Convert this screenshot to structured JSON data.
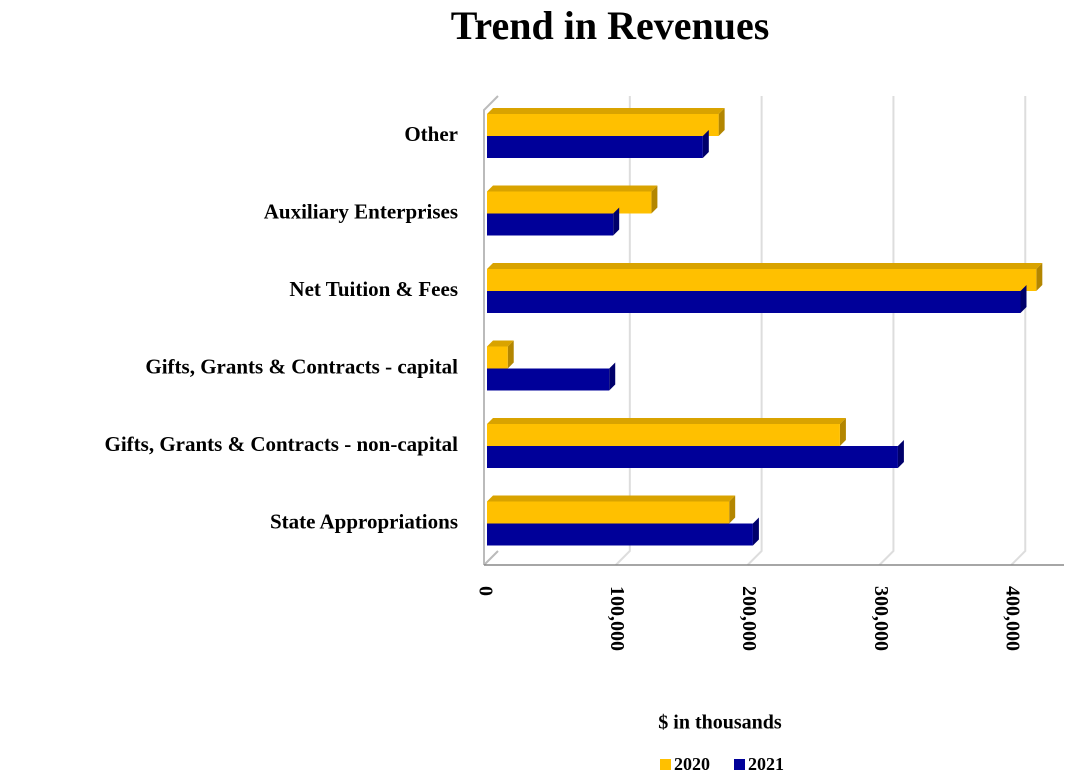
{
  "chart_data": {
    "type": "bar",
    "orientation": "horizontal",
    "title": "Trend in Revenues",
    "x_label": "$ in thousands",
    "categories": [
      "Other",
      "Auxiliary Enterprises",
      "Net Tuition & Fees",
      "Gifts, Grants & Contracts - capital",
      "Gifts, Grants & Contracts - non-capital",
      "State Appropriations"
    ],
    "series": [
      {
        "name": "2020",
        "color": "#ffc000",
        "values": [
          178000,
          127000,
          419000,
          18000,
          270000,
          186000
        ]
      },
      {
        "name": "2021",
        "color": "#000099",
        "values": [
          166000,
          98000,
          407000,
          95000,
          314000,
          204000
        ]
      }
    ],
    "xlim": [
      0,
      440000
    ],
    "xticks": [
      0,
      {
        "value": 100000,
        "label": "100,000"
      },
      {
        "value": 200000,
        "label": "200,000"
      },
      {
        "value": 300000,
        "label": "300,000"
      },
      {
        "value": 400000,
        "label": "400,000"
      }
    ],
    "grid": true,
    "legend": "bottom"
  }
}
